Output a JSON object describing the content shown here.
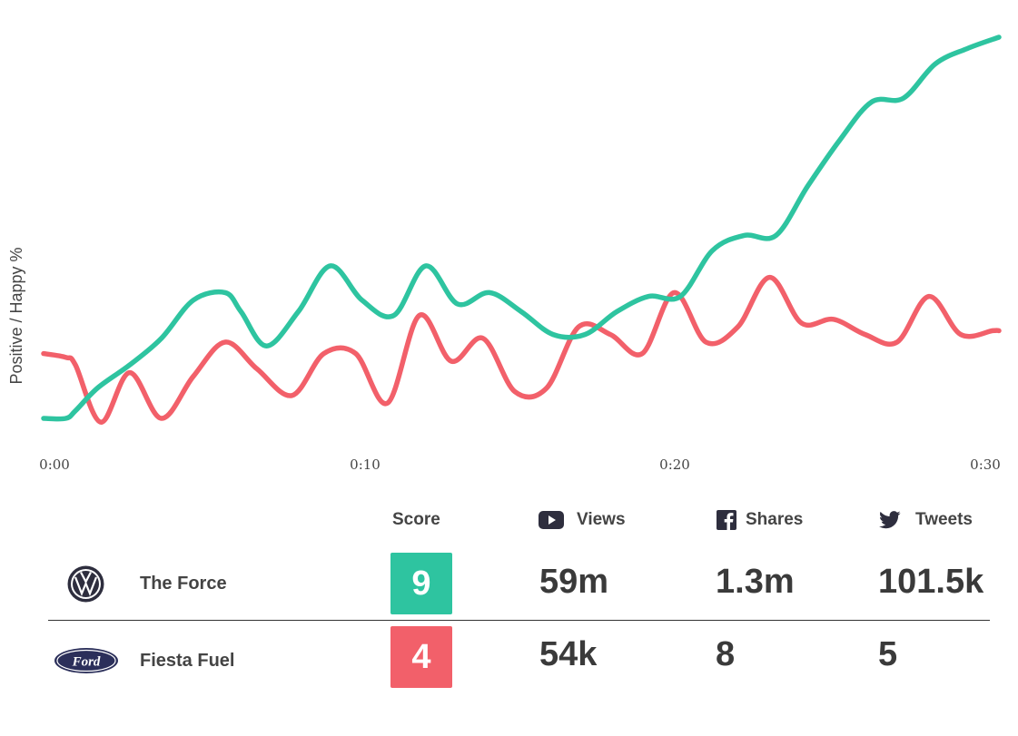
{
  "colors": {
    "positive": "#2ec4a0",
    "negative": "#f2606a",
    "text": "#444444"
  },
  "chart_data": {
    "type": "line",
    "title": "",
    "xlabel": "",
    "ylabel": "Positive / Happy %",
    "x_ticks": [
      "0:00",
      "0:10",
      "0:20",
      "0:30"
    ],
    "xlim": [
      0,
      30
    ],
    "ylim": [
      0,
      100
    ],
    "series": [
      {
        "color": "#2ec4a0",
        "x": [
          0,
          0.7,
          1,
          1.7,
          2.7,
          3.7,
          4.7,
          5.7,
          6.2,
          7,
          8,
          9,
          10,
          11,
          12,
          13,
          14,
          15,
          16,
          17,
          18,
          19,
          20,
          21,
          22,
          23,
          24,
          25,
          26,
          27,
          28,
          29,
          30
        ],
        "y": [
          0,
          0,
          2,
          8,
          14,
          21,
          31,
          33,
          28,
          19,
          28,
          40,
          31,
          27,
          40,
          30,
          33,
          28,
          22,
          22,
          28,
          32,
          32,
          44,
          48,
          48,
          61,
          73,
          83,
          84,
          93,
          97,
          100
        ]
      },
      {
        "color": "#f2606a",
        "x": [
          0,
          0.7,
          1,
          1.8,
          2.7,
          3.7,
          4.7,
          5.7,
          6.7,
          7.8,
          8.8,
          9.8,
          10.8,
          11.8,
          12.8,
          13.8,
          14.8,
          15.8,
          16.8,
          17.8,
          18.8,
          19.8,
          20.8,
          21.8,
          22.8,
          23.8,
          24.8,
          25.8,
          26.8,
          27.8,
          28.8,
          29.8,
          30
        ],
        "y": [
          17,
          16,
          14,
          -1,
          12,
          0,
          11,
          20,
          13,
          6,
          17,
          17,
          4,
          27,
          15,
          21,
          7,
          8,
          24,
          22,
          17,
          33,
          20,
          24,
          37,
          25,
          26,
          22,
          20,
          32,
          22,
          23,
          23
        ]
      }
    ]
  },
  "table": {
    "headers": {
      "score": "Score",
      "views": "Views",
      "shares": "Shares",
      "tweets": "Tweets"
    },
    "icons": {
      "views": "youtube-icon",
      "shares": "facebook-icon",
      "tweets": "twitter-icon"
    },
    "rows": [
      {
        "name": "The Force",
        "logo": "volkswagen-logo",
        "score": "9",
        "score_color": "#2ec4a0",
        "views": "59m",
        "shares": "1.3m",
        "tweets": "101.5k"
      },
      {
        "name": "Fiesta Fuel",
        "logo": "ford-logo",
        "score": "4",
        "score_color": "#f2606a",
        "views": "54k",
        "shares": "8",
        "tweets": "5"
      }
    ]
  }
}
